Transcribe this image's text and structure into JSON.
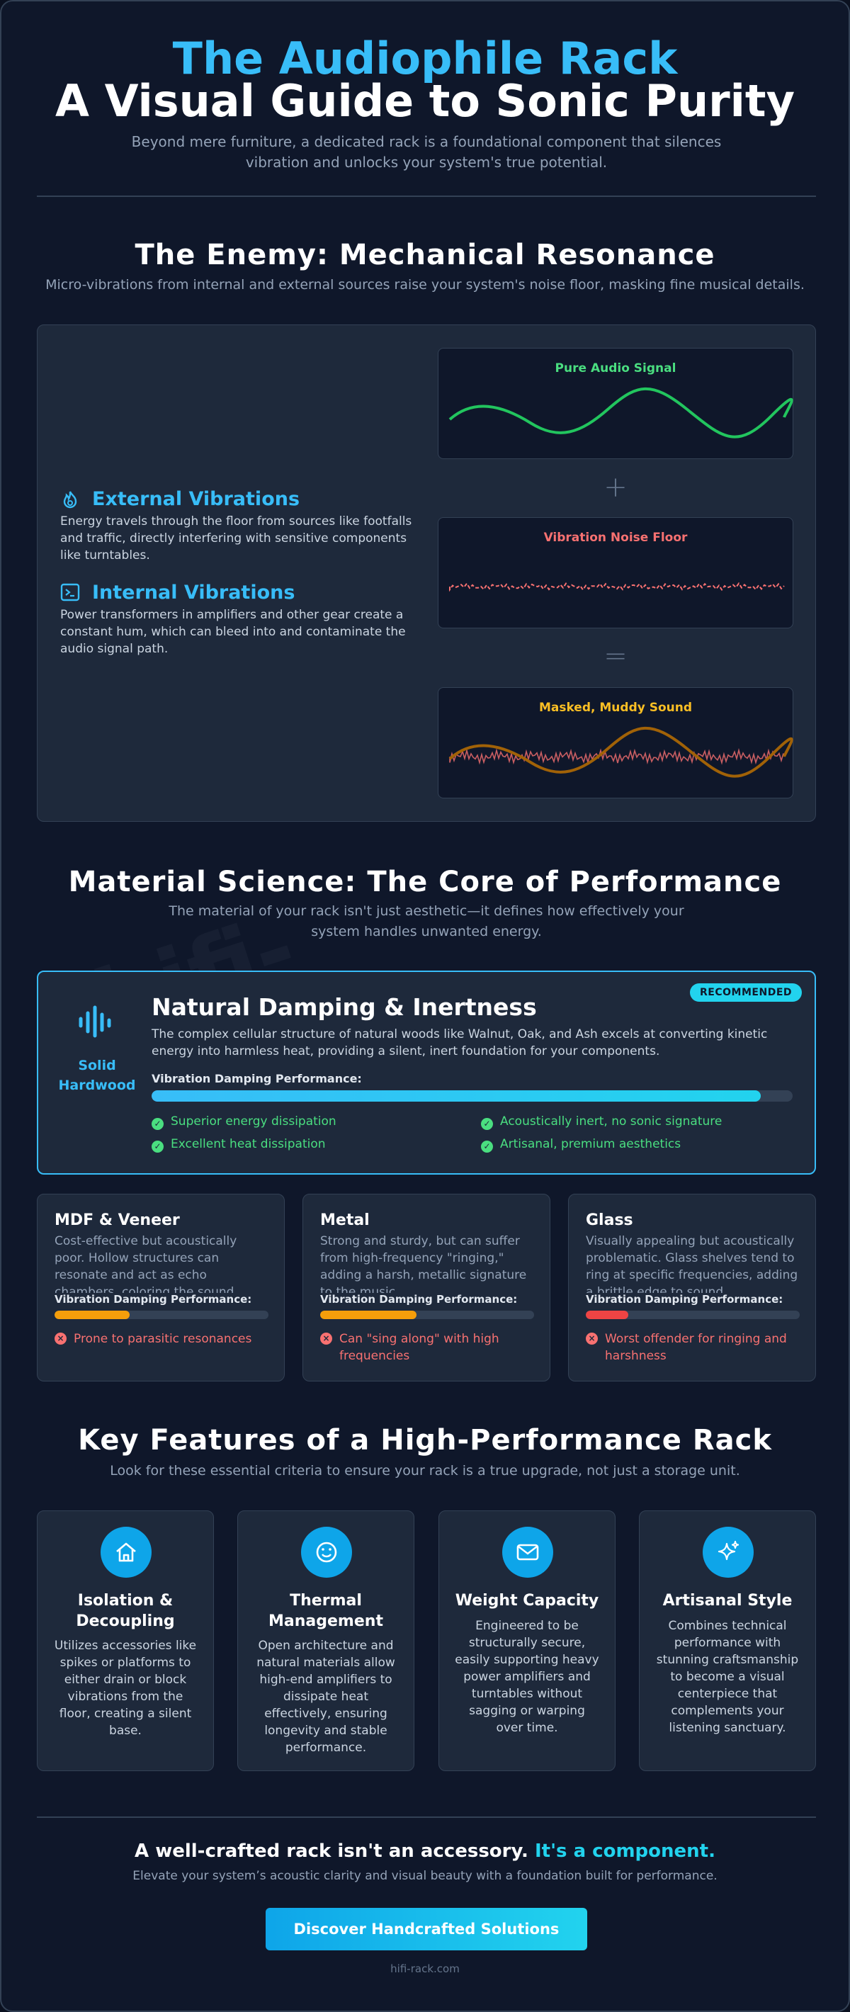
{
  "header": {
    "title": "The Audiophile Rack",
    "subtitle": "A Visual Guide to Sonic Purity",
    "intro": "Beyond mere furniture, a dedicated rack is a foundational component that silences vibration and unlocks your system's true potential."
  },
  "resonance": {
    "heading": "The Enemy: Mechanical Resonance",
    "description": "Micro-vibrations from internal and external sources raise your system's noise floor, masking fine musical details.",
    "sources": [
      {
        "title": "External Vibrations",
        "text": "Energy travels through the floor from sources like footfalls and traffic, directly interfering with sensitive components like turntables."
      },
      {
        "title": "Internal Vibrations",
        "text": "Power transformers in amplifiers and other gear create a constant hum, which can bleed into and contaminate the audio signal path."
      }
    ],
    "diagrams": [
      {
        "label": "Pure Audio Signal"
      },
      {
        "label": "Vibration Noise Floor"
      },
      {
        "label": "Masked, Muddy Sound"
      }
    ]
  },
  "materials": {
    "heading": "Material Science: The Core of Performance",
    "description": "The material of your rack isn't just aesthetic—it defines how effectively your system handles unwanted energy.",
    "watermark": "hifi-",
    "featured": {
      "name": "Solid Hardwood",
      "badge": "RECOMMENDED",
      "title": "Natural Damping & Inertness",
      "text": "The complex cellular structure of natural woods like Walnut, Oak, and Ash excels at converting kinetic energy into harmless heat, providing a silent, inert foundation for your components.",
      "metric_label": "Vibration Damping Performance:",
      "performance": 95,
      "benefits": [
        "Superior energy dissipation",
        "Acoustically inert, no sonic signature",
        "Excellent heat dissipation",
        "Artisanal, premium aesthetics"
      ]
    },
    "others": [
      {
        "title": "MDF & Veneer",
        "text": "Cost-effective but acoustically poor. Hollow structures can resonate and act as echo chambers, coloring the sound.",
        "metric_label": "Vibration Damping Performance:",
        "performance": 35,
        "drawback": "Prone to parasitic resonances"
      },
      {
        "title": "Metal",
        "text": "Strong and sturdy, but can suffer from high-frequency \"ringing,\" adding a harsh, metallic signature to the music.",
        "metric_label": "Vibration Damping Performance:",
        "performance": 45,
        "drawback": "Can \"sing along\" with high frequencies"
      },
      {
        "title": "Glass",
        "text": "Visually appealing but acoustically problematic. Glass shelves tend to ring at specific frequencies, adding a brittle edge to sound.",
        "metric_label": "Vibration Damping Performance:",
        "performance": 20,
        "drawback": "Worst offender for ringing and harshness"
      }
    ]
  },
  "features": {
    "heading": "Key Features of a High-Performance Rack",
    "description": "Look for these essential criteria to ensure your rack is a true upgrade, not just a storage unit.",
    "items": [
      {
        "title": "Isolation & Decoupling",
        "text": "Utilizes accessories like spikes or platforms to either drain or block vibrations from the floor, creating a silent base."
      },
      {
        "title": "Thermal Management",
        "text": "Open architecture and natural materials allow high-end amplifiers to dissipate heat effectively, ensuring longevity and stable performance."
      },
      {
        "title": "Weight Capacity",
        "text": "Engineered to be structurally secure, easily supporting heavy power amplifiers and turntables without sagging or warping over time."
      },
      {
        "title": "Artisanal Style",
        "text": "Combines technical performance with stunning craftsmanship to become a visual centerpiece that complements your listening sanctuary."
      }
    ]
  },
  "closing": {
    "heading": "A well-crafted rack isn't an accessory.",
    "highlight": "It's a component.",
    "text": "Elevate your system’s acoustic clarity and visual beauty with a foundation built for performance.",
    "button": "Discover Handcrafted Solutions",
    "footer": "hifi-rack.com"
  }
}
